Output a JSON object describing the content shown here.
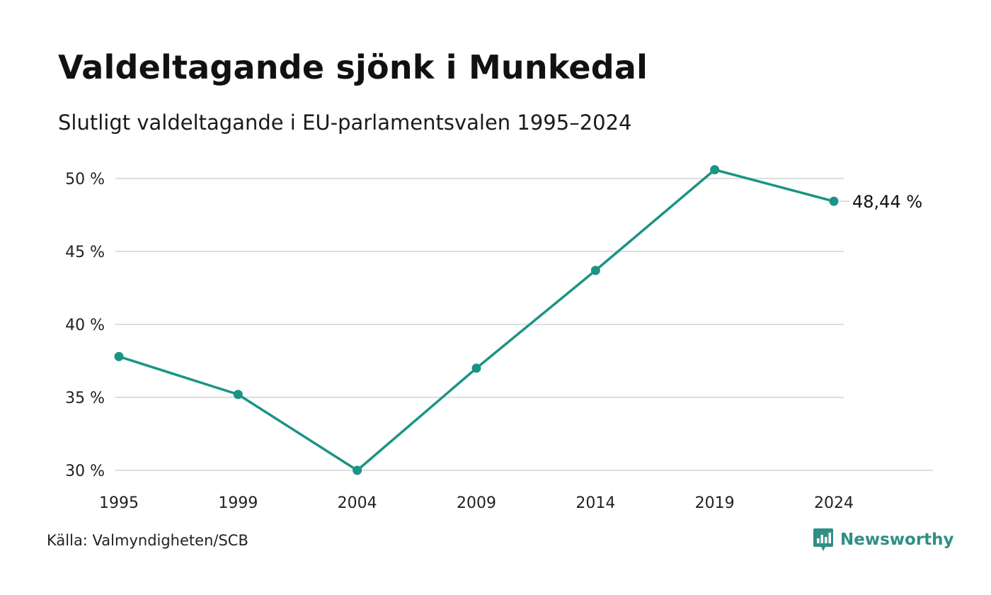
{
  "title": "Valdeltagande sjönk i Munkedal",
  "subtitle": "Slutligt valdeltagande i EU-parlamentsvalen 1995–2024",
  "source": "Källa: Valmyndigheten/SCB",
  "brand": {
    "name": "Newsworthy",
    "icon": "newsworthy-logo-icon"
  },
  "colors": {
    "line": "#1a9484",
    "grid": "#dddde0",
    "text": "#111111",
    "brand": "#2f8f86"
  },
  "chart_data": {
    "type": "line",
    "x": [
      "1995",
      "1999",
      "2004",
      "2009",
      "2014",
      "2019",
      "2024"
    ],
    "y": [
      37.8,
      35.2,
      30.0,
      37.0,
      43.7,
      50.6,
      48.44
    ],
    "ylim": [
      30,
      50
    ],
    "yticks": [
      30,
      35,
      40,
      45,
      50
    ],
    "ytick_labels": [
      "30 %",
      "35 %",
      "40 %",
      "45 %",
      "50 %"
    ],
    "end_label": "48,44 %",
    "grid": true,
    "markers": true
  }
}
